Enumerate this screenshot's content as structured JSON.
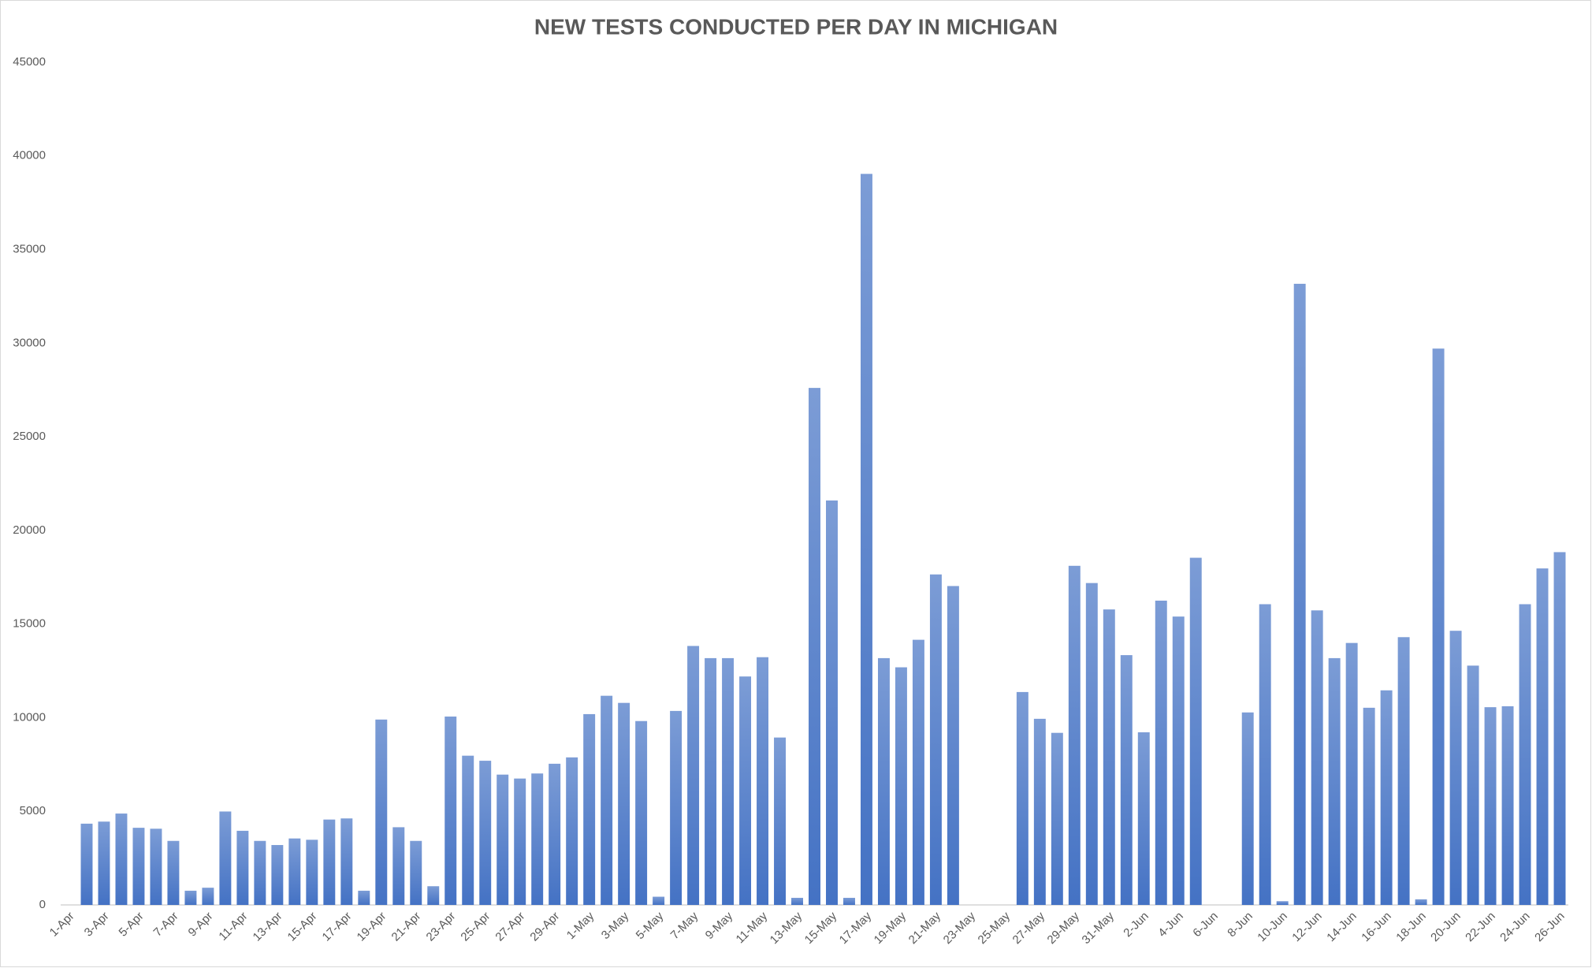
{
  "chart_data": {
    "type": "bar",
    "title": "NEW TESTS CONDUCTED PER DAY IN MICHIGAN",
    "categories": [
      "1-Apr",
      null,
      "3-Apr",
      null,
      "5-Apr",
      null,
      "7-Apr",
      null,
      "9-Apr",
      null,
      "11-Apr",
      null,
      "13-Apr",
      null,
      "15-Apr",
      null,
      "17-Apr",
      null,
      "19-Apr",
      null,
      "21-Apr",
      null,
      "23-Apr",
      null,
      "25-Apr",
      null,
      "27-Apr",
      null,
      "29-Apr",
      null,
      "1-May",
      null,
      "3-May",
      null,
      "5-May",
      null,
      "7-May",
      null,
      "9-May",
      null,
      "11-May",
      null,
      "13-May",
      null,
      "15-May",
      null,
      "17-May",
      null,
      "19-May",
      null,
      "21-May",
      null,
      "23-May",
      null,
      "25-May",
      null,
      "27-May",
      null,
      "29-May",
      null,
      "31-May",
      null,
      "2-Jun",
      null,
      "4-Jun",
      null,
      "6-Jun",
      null,
      "8-Jun",
      null,
      "10-Jun",
      null,
      "12-Jun",
      null,
      "14-Jun",
      null,
      "16-Jun",
      null,
      "18-Jun",
      null,
      "20-Jun",
      null,
      "22-Jun",
      null,
      "24-Jun",
      null,
      "26-Jun"
    ],
    "values": [
      0,
      4340,
      4450,
      4880,
      4120,
      4070,
      3420,
      760,
      920,
      4990,
      3960,
      3420,
      3200,
      3550,
      3480,
      4560,
      4620,
      760,
      9900,
      4150,
      3420,
      1000,
      10060,
      7970,
      7700,
      6960,
      6750,
      7020,
      7540,
      7880,
      10190,
      11170,
      10790,
      9820,
      440,
      10360,
      13830,
      13180,
      13180,
      12200,
      13230,
      8940,
      380,
      27610,
      21600,
      380,
      39040,
      13180,
      12690,
      14160,
      17650,
      17030,
      0,
      0,
      0,
      11370,
      9940,
      9190,
      18110,
      17190,
      15780,
      13340,
      9220,
      16250,
      15400,
      18540,
      0,
      0,
      10280,
      16060,
      200,
      33170,
      15730,
      13180,
      13990,
      10530,
      11460,
      14300,
      300,
      29710,
      14640,
      12780,
      10560,
      10610,
      16060,
      17970,
      18840
    ],
    "color": "#4472c4",
    "ylim": [
      0,
      45000
    ],
    "yticks": [
      0,
      5000,
      10000,
      15000,
      20000,
      25000,
      30000,
      35000,
      40000,
      45000
    ],
    "grid": false
  }
}
